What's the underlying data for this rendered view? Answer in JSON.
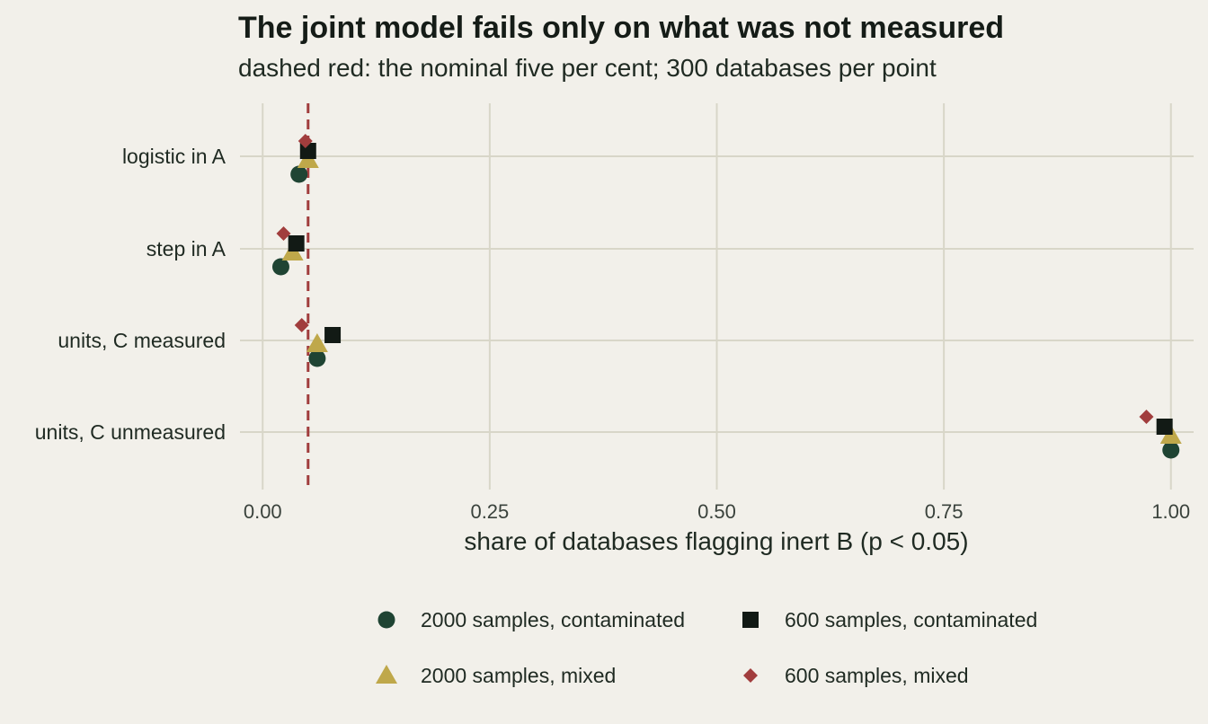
{
  "chart_data": {
    "type": "scatter",
    "title": "The joint model fails only on what was not measured",
    "subtitle": "dashed red: the nominal five per cent; 300 databases per point",
    "xlabel": "share of databases flagging inert B (p < 0.05)",
    "ylabel": "",
    "categories": [
      "logistic in A",
      "step in A",
      "units, C measured",
      "units, C unmeasured"
    ],
    "xlim": [
      -0.025,
      1.025
    ],
    "xticks": [
      0.0,
      0.25,
      0.5,
      0.75,
      1.0
    ],
    "xtick_labels": [
      "0.00",
      "0.25",
      "0.50",
      "0.75",
      "1.00"
    ],
    "reference_line": {
      "x": 0.05,
      "color": "#a13d3d",
      "style": "dashed"
    },
    "grid": true,
    "legend_position": "bottom",
    "series": [
      {
        "name": "2000 samples, contaminated",
        "marker": "circle",
        "color": "#1f4433",
        "values": [
          0.04,
          0.02,
          0.06,
          1.0
        ]
      },
      {
        "name": "2000 samples, mixed",
        "marker": "triangle",
        "color": "#bfa84a",
        "values": [
          0.05,
          0.033,
          0.06,
          1.0
        ]
      },
      {
        "name": "600 samples, contaminated",
        "marker": "square",
        "color": "#121a15",
        "values": [
          0.05,
          0.037,
          0.077,
          0.993
        ]
      },
      {
        "name": "600 samples, mixed",
        "marker": "diamond",
        "color": "#a13d3d",
        "values": [
          0.047,
          0.023,
          0.043,
          0.973
        ]
      }
    ]
  }
}
